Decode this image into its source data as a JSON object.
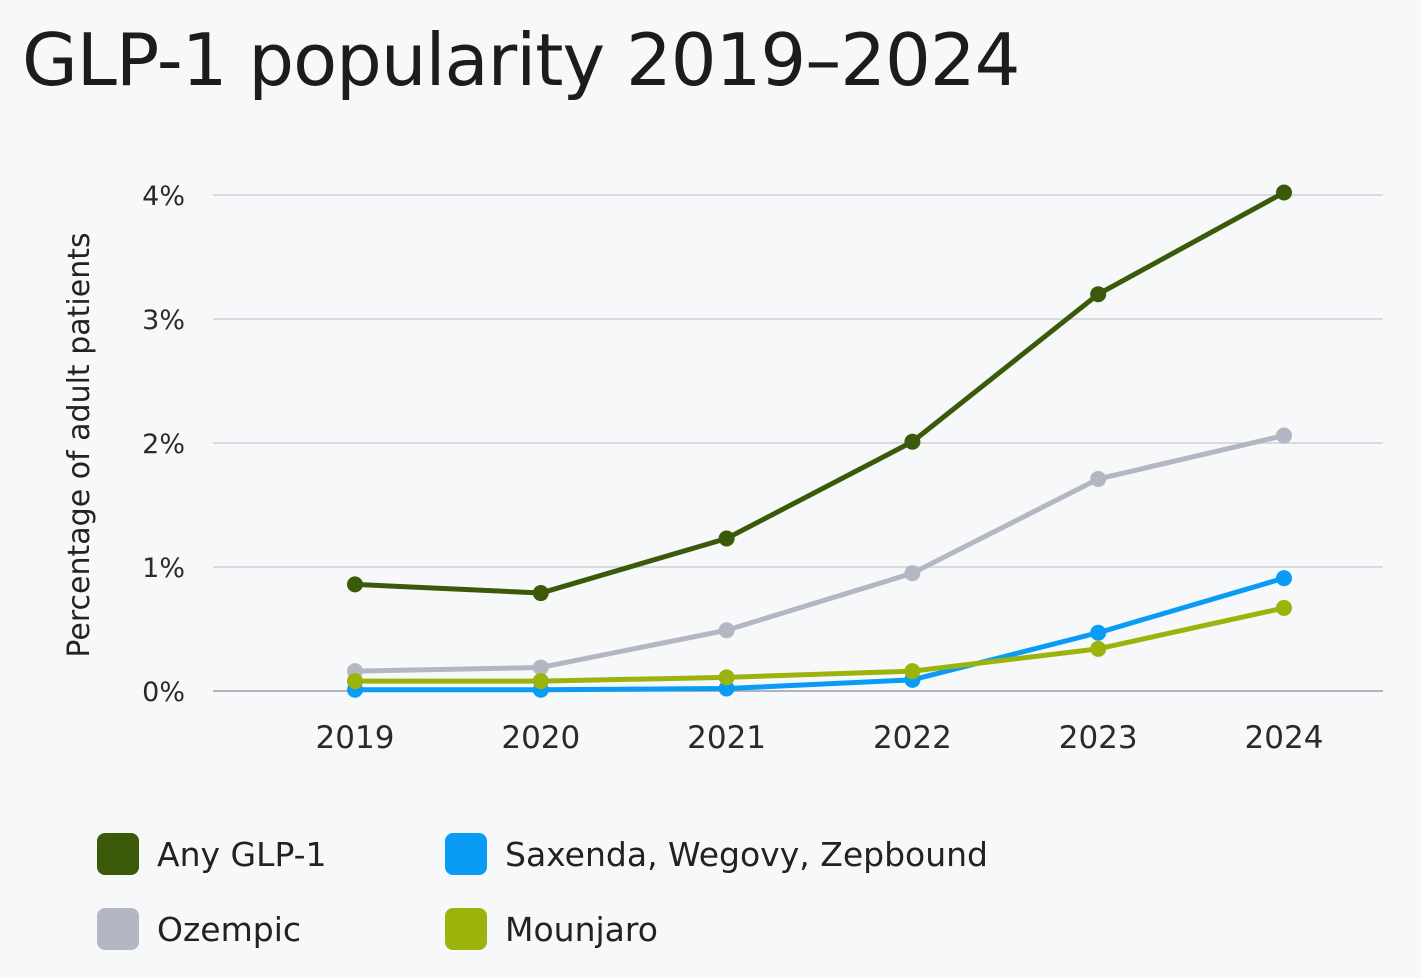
{
  "title": "GLP-1 popularity 2019–2024",
  "chart_data": {
    "type": "line",
    "x": [
      "2019",
      "2020",
      "2021",
      "2022",
      "2023",
      "2024"
    ],
    "ylabel": "Percentage of adult patients",
    "xlabel": "",
    "ylim": [
      0,
      4
    ],
    "yticks": [
      0,
      1,
      2,
      3,
      4
    ],
    "ytick_labels": [
      "0%",
      "1%",
      "2%",
      "3%",
      "4%"
    ],
    "grid": true,
    "legend_position": "bottom",
    "series": [
      {
        "name": "Any GLP-1",
        "color": "#3a5a0a",
        "values": [
          0.86,
          0.79,
          1.23,
          2.01,
          3.2,
          4.02
        ]
      },
      {
        "name": "Ozempic",
        "color": "#b5b6c3",
        "values": [
          0.16,
          0.19,
          0.49,
          0.95,
          1.71,
          2.06
        ]
      },
      {
        "name": "Saxenda, Wegovy, Zepbound",
        "color": "#0a9cf5",
        "values": [
          0.01,
          0.01,
          0.02,
          0.09,
          0.47,
          0.91
        ]
      },
      {
        "name": "Mounjaro",
        "color": "#9bb30a",
        "values": [
          0.08,
          0.08,
          0.11,
          0.16,
          0.34,
          0.67
        ]
      }
    ]
  },
  "legend": [
    {
      "label": "Any GLP-1",
      "color": "#3a5a0a"
    },
    {
      "label": "Saxenda, Wegovy, Zepbound",
      "color": "#0a9cf5"
    },
    {
      "label": "Ozempic",
      "color": "#b5b6c3"
    },
    {
      "label": "Mounjaro",
      "color": "#9bb30a"
    }
  ]
}
